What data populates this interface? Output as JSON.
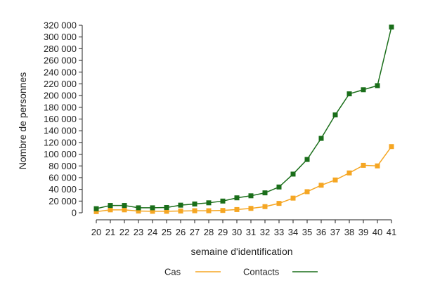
{
  "chart_data": {
    "type": "line",
    "title": "",
    "xlabel": "semaine d'identification",
    "ylabel": "Nombre de personnes",
    "x": [
      20,
      21,
      22,
      23,
      24,
      25,
      26,
      27,
      28,
      29,
      30,
      31,
      32,
      33,
      34,
      35,
      36,
      37,
      38,
      39,
      40,
      41
    ],
    "ylim": [
      0,
      320000
    ],
    "yticks": [
      0,
      20000,
      40000,
      60000,
      80000,
      100000,
      120000,
      140000,
      160000,
      180000,
      200000,
      220000,
      240000,
      260000,
      280000,
      300000,
      320000
    ],
    "ytick_labels": [
      "0",
      "20 000",
      "40 000",
      "60 000",
      "80 000",
      "100 000",
      "120 000",
      "140 000",
      "160 000",
      "180 000",
      "200 000",
      "220 000",
      "240 000",
      "260 000",
      "280 000",
      "300 000",
      "320 000"
    ],
    "xtick_labels": [
      "20",
      "21",
      "22",
      "23",
      "24",
      "25",
      "26",
      "27",
      "28",
      "29",
      "30",
      "31",
      "32",
      "33",
      "34",
      "35",
      "36",
      "37",
      "38",
      "39",
      "40",
      "41"
    ],
    "grid": false,
    "legend_position": "bottom",
    "series": [
      {
        "name": "Cas",
        "color": "#f5a623",
        "values": [
          2000,
          5000,
          5000,
          3000,
          2500,
          2500,
          3000,
          3500,
          3500,
          4000,
          5500,
          7500,
          10500,
          16000,
          25000,
          36000,
          47000,
          56000,
          68000,
          81000,
          80000,
          113000
        ]
      },
      {
        "name": "Contacts",
        "color": "#1a6e1a",
        "values": [
          7000,
          12500,
          12500,
          8500,
          8500,
          9000,
          13000,
          15000,
          17000,
          20000,
          25500,
          29000,
          34000,
          44000,
          66000,
          91000,
          127000,
          167000,
          203000,
          210000,
          217000,
          317000
        ]
      }
    ]
  }
}
